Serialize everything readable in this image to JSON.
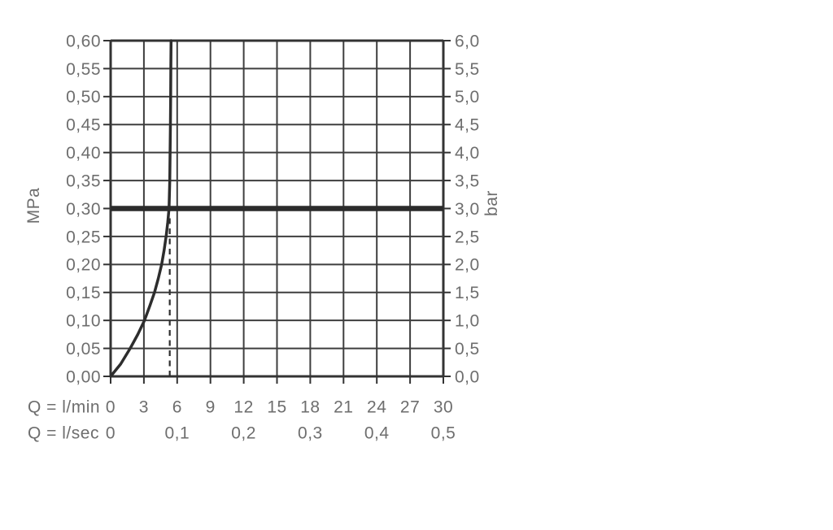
{
  "chart_data": {
    "type": "line",
    "title": "",
    "grid": true,
    "legend": false,
    "x_axis": {
      "primary_label": "Q = l/min",
      "secondary_label": "Q = l/sec",
      "min": 0,
      "max": 30,
      "primary_ticks": [
        {
          "value": 0,
          "label": "0"
        },
        {
          "value": 3,
          "label": "3"
        },
        {
          "value": 6,
          "label": "6"
        },
        {
          "value": 9,
          "label": "9"
        },
        {
          "value": 12,
          "label": "12"
        },
        {
          "value": 15,
          "label": "15"
        },
        {
          "value": 18,
          "label": "18"
        },
        {
          "value": 21,
          "label": "21"
        },
        {
          "value": 24,
          "label": "24"
        },
        {
          "value": 27,
          "label": "27"
        },
        {
          "value": 30,
          "label": "30"
        }
      ],
      "secondary_ticks": [
        {
          "value": 0,
          "label": "0"
        },
        {
          "value": 6,
          "label": "0,1"
        },
        {
          "value": 12,
          "label": "0,2"
        },
        {
          "value": 18,
          "label": "0,3"
        },
        {
          "value": 24,
          "label": "0,4"
        },
        {
          "value": 30,
          "label": "0,5"
        }
      ]
    },
    "y_axis_left": {
      "label": "MPa",
      "min": 0,
      "max": 0.6,
      "ticks": [
        {
          "value": 0.0,
          "label": "0,00"
        },
        {
          "value": 0.05,
          "label": "0,05"
        },
        {
          "value": 0.1,
          "label": "0,10"
        },
        {
          "value": 0.15,
          "label": "0,15"
        },
        {
          "value": 0.2,
          "label": "0,20"
        },
        {
          "value": 0.25,
          "label": "0,25"
        },
        {
          "value": 0.3,
          "label": "0,30"
        },
        {
          "value": 0.35,
          "label": "0,35"
        },
        {
          "value": 0.4,
          "label": "0,40"
        },
        {
          "value": 0.45,
          "label": "0,45"
        },
        {
          "value": 0.5,
          "label": "0,50"
        },
        {
          "value": 0.55,
          "label": "0,55"
        },
        {
          "value": 0.6,
          "label": "0,60"
        }
      ]
    },
    "y_axis_right": {
      "label": "bar",
      "min": 0,
      "max": 6,
      "ticks": [
        {
          "value": 0.0,
          "label": "0,0"
        },
        {
          "value": 0.5,
          "label": "0,5"
        },
        {
          "value": 1.0,
          "label": "1,0"
        },
        {
          "value": 1.5,
          "label": "1,5"
        },
        {
          "value": 2.0,
          "label": "2,0"
        },
        {
          "value": 2.5,
          "label": "2,5"
        },
        {
          "value": 3.0,
          "label": "3,0"
        },
        {
          "value": 3.5,
          "label": "3,5"
        },
        {
          "value": 4.0,
          "label": "4,0"
        },
        {
          "value": 4.5,
          "label": "4,5"
        },
        {
          "value": 5.0,
          "label": "5,0"
        },
        {
          "value": 5.5,
          "label": "5,5"
        },
        {
          "value": 6.0,
          "label": "6,0"
        }
      ]
    },
    "series": [
      {
        "name": "pressure-flow-curve",
        "type": "line",
        "points": [
          [
            0,
            0
          ],
          [
            0.9,
            0.022
          ],
          [
            1.76,
            0.05
          ],
          [
            2.45,
            0.075
          ],
          [
            3.05,
            0.1
          ],
          [
            3.55,
            0.127
          ],
          [
            3.95,
            0.15
          ],
          [
            4.3,
            0.175
          ],
          [
            4.6,
            0.2
          ],
          [
            4.82,
            0.225
          ],
          [
            5.0,
            0.25
          ],
          [
            5.15,
            0.275
          ],
          [
            5.27,
            0.3
          ],
          [
            5.33,
            0.35
          ],
          [
            5.36,
            0.4
          ],
          [
            5.39,
            0.45
          ],
          [
            5.41,
            0.5
          ],
          [
            5.43,
            0.55
          ],
          [
            5.45,
            0.6
          ]
        ]
      },
      {
        "name": "operating-pressure-line",
        "type": "horizontal-line",
        "y_mpa": 0.3,
        "y_bar": 3.0
      },
      {
        "name": "flow-indicator-dashed-line",
        "type": "vertical-dashed-line",
        "x_lmin": 5.33,
        "from_mpa": 0,
        "to_mpa": 0.29
      }
    ],
    "colors": {
      "grid": "#3e3e3e",
      "border": "#333333",
      "curve": "#2d2d2d",
      "reference_line": "#2b2b2b",
      "dashed_line": "#2d2d2d",
      "label_text": "#6e6e6e",
      "background": "#ffffff"
    }
  }
}
